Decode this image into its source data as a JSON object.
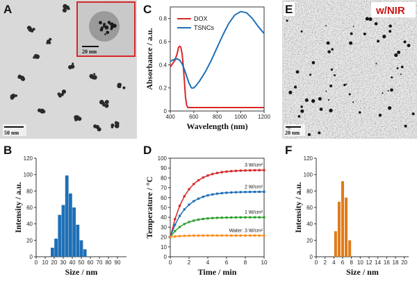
{
  "panels": {
    "A": {
      "label": "A",
      "scalebar": "50 nm",
      "inset_scalebar": "20 nm"
    },
    "E": {
      "label": "E",
      "scalebar": "20 nm",
      "tag": "w/NIR",
      "tag_color": "#cc1111"
    },
    "B": {
      "label": "B"
    },
    "C": {
      "label": "C"
    },
    "D": {
      "label": "D"
    },
    "F": {
      "label": "F"
    }
  },
  "chart_data": [
    {
      "id": "B",
      "type": "bar",
      "xlabel": "Size / nm",
      "ylabel": "Intensity / a.u.",
      "x": [
        18,
        22,
        26,
        30,
        34,
        38,
        42,
        46,
        50,
        54
      ],
      "values": [
        11,
        22,
        51,
        63,
        99,
        77,
        60,
        39,
        20,
        9
      ],
      "xlim": [
        0,
        100
      ],
      "ylim": [
        0,
        120
      ],
      "xticks": [
        0,
        10,
        20,
        30,
        40,
        50,
        60,
        70,
        80,
        90
      ],
      "yticks": [
        0,
        20,
        40,
        60,
        80,
        100,
        120
      ],
      "color": "#1f6fb5"
    },
    {
      "id": "C",
      "type": "line",
      "xlabel": "Wavelength (nm)",
      "ylabel": "Absorbance / a.u.",
      "xlim": [
        400,
        1200
      ],
      "ylim": [
        0,
        0.9
      ],
      "xticks": [
        400,
        600,
        800,
        1000,
        1200
      ],
      "yticks": [
        0,
        0.2,
        0.4,
        0.6,
        0.8
      ],
      "legend": "top-left",
      "series": [
        {
          "name": "DOX",
          "color": "#d62728",
          "x": [
            400,
            420,
            440,
            460,
            470,
            480,
            490,
            500,
            510,
            520,
            530,
            540,
            550,
            560,
            580,
            600,
            700,
            800,
            900,
            1000,
            1100,
            1200
          ],
          "y": [
            0.38,
            0.41,
            0.44,
            0.5,
            0.55,
            0.56,
            0.55,
            0.5,
            0.4,
            0.26,
            0.12,
            0.05,
            0.03,
            0.03,
            0.03,
            0.03,
            0.03,
            0.03,
            0.03,
            0.03,
            0.03,
            0.03
          ]
        },
        {
          "name": "TSNCs",
          "color": "#1f6fb5",
          "x": [
            400,
            420,
            440,
            460,
            480,
            500,
            520,
            540,
            560,
            580,
            600,
            620,
            650,
            700,
            750,
            800,
            850,
            900,
            950,
            1000,
            1050,
            1100,
            1150,
            1200
          ],
          "y": [
            0.43,
            0.44,
            0.45,
            0.45,
            0.44,
            0.41,
            0.36,
            0.3,
            0.24,
            0.2,
            0.2,
            0.22,
            0.26,
            0.34,
            0.44,
            0.55,
            0.66,
            0.76,
            0.83,
            0.86,
            0.85,
            0.8,
            0.73,
            0.67
          ]
        }
      ]
    },
    {
      "id": "D",
      "type": "line",
      "xlabel": "Time / min",
      "ylabel": "Temperature / °C",
      "xlim": [
        0,
        10
      ],
      "ylim": [
        0,
        100
      ],
      "xticks": [
        0,
        2,
        4,
        6,
        8,
        10
      ],
      "yticks": [
        0,
        10,
        20,
        30,
        40,
        50,
        60,
        70,
        80,
        90,
        100
      ],
      "series": [
        {
          "name": "3 W/cm²",
          "color": "#d62728",
          "plateau": 88,
          "tau": 1.6
        },
        {
          "name": "2 W/cm²",
          "color": "#1f6fb5",
          "plateau": 66,
          "tau": 1.6
        },
        {
          "name": "1 W/cm²",
          "color": "#2ca02c",
          "plateau": 40,
          "tau": 1.4
        },
        {
          "name": "Water: 3 W/cm²",
          "color": "#ff8c1a",
          "plateau": 21.5,
          "tau": 1.0
        }
      ],
      "start": 20,
      "x": [
        0,
        0.5,
        1,
        1.5,
        2,
        2.5,
        3,
        3.5,
        4,
        4.5,
        5,
        5.5,
        6,
        6.5,
        7,
        7.5,
        8,
        8.5,
        9,
        9.5,
        10
      ]
    },
    {
      "id": "F",
      "type": "bar",
      "xlabel": "Size / nm",
      "ylabel": "Intensity / a.u.",
      "x": [
        4.4,
        5.2,
        6.0,
        6.8,
        7.6
      ],
      "values": [
        31,
        67,
        92,
        72,
        20
      ],
      "xlim": [
        0,
        21
      ],
      "ylim": [
        0,
        120
      ],
      "xticks": [
        0,
        2,
        4,
        6,
        8,
        10,
        12,
        14,
        16,
        18,
        20
      ],
      "yticks": [
        0,
        20,
        40,
        60,
        80,
        100,
        120
      ],
      "color": "#e07b1a"
    }
  ]
}
